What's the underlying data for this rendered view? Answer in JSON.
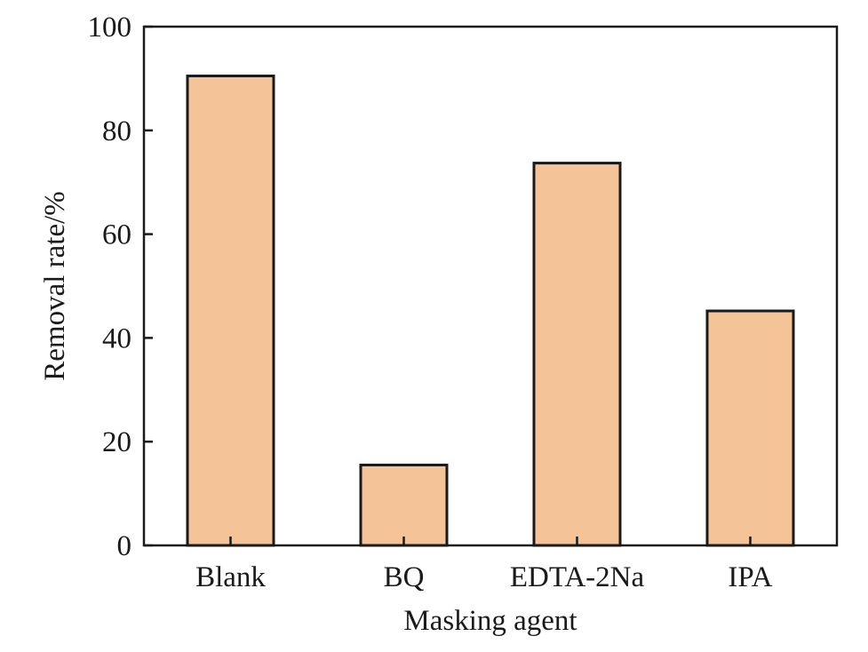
{
  "chart_data": {
    "type": "bar",
    "title": "",
    "xlabel": "Masking agent",
    "ylabel": "Removal rate/%",
    "categories": [
      "Blank",
      "BQ",
      "EDTA-2Na",
      "IPA"
    ],
    "values": [
      90.5,
      15.5,
      73.7,
      45.2
    ],
    "ylim": [
      0,
      100
    ],
    "yticks": [
      "0",
      "20",
      "40",
      "60",
      "80",
      "100"
    ],
    "grid": false,
    "legend": "none",
    "colors": {
      "bar_fill": "#f5c398",
      "bar_stroke": "#1a1a1a",
      "axis": "#1a1a1a"
    }
  }
}
